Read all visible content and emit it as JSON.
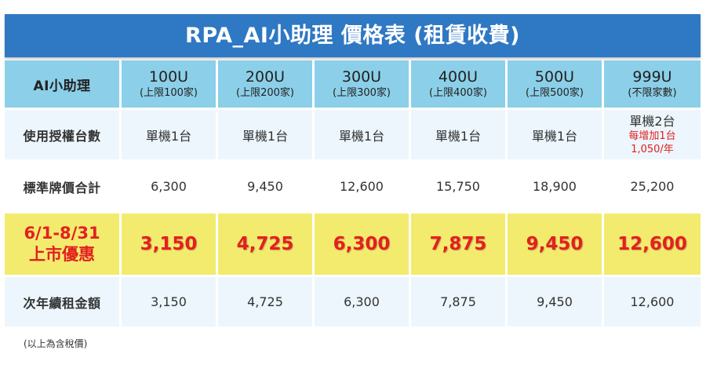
{
  "title": "RPA_AI小助理 價格表 (租賃收費)",
  "header": {
    "label": "AI小助理",
    "plans": [
      {
        "name": "100U",
        "sub": "(上限100家)"
      },
      {
        "name": "200U",
        "sub": "(上限200家)"
      },
      {
        "name": "300U",
        "sub": "(上限300家)"
      },
      {
        "name": "400U",
        "sub": "(上限400家)"
      },
      {
        "name": "500U",
        "sub": "(上限500家)"
      },
      {
        "name": "999U",
        "sub": "(不限家數)"
      }
    ]
  },
  "rows": {
    "license": {
      "label": "使用授權台數",
      "values": [
        "單機1台",
        "單機1台",
        "單機1台",
        "單機1台",
        "單機1台",
        "單機2台"
      ],
      "extra_line1": "每增加1台",
      "extra_line2": "1,050/年"
    },
    "standard": {
      "label": "標準牌價合計",
      "values": [
        "6,300",
        "9,450",
        "12,600",
        "15,750",
        "18,900",
        "25,200"
      ]
    },
    "promo": {
      "label_line1": "6/1-8/31",
      "label_line2": "上市優惠",
      "values": [
        "3,150",
        "4,725",
        "6,300",
        "7,875",
        "9,450",
        "12,600"
      ]
    },
    "renewal": {
      "label": "次年續租金額",
      "values": [
        "3,150",
        "4,725",
        "6,300",
        "7,875",
        "9,450",
        "12,600"
      ]
    }
  },
  "footnote": "(以上為含稅價)",
  "colors": {
    "title_bg": "#2f78c3",
    "header_bg": "#8ccfe8",
    "row_light": "#edf6fc",
    "promo_bg": "#f3eb6e",
    "promo_text": "#e32020"
  }
}
